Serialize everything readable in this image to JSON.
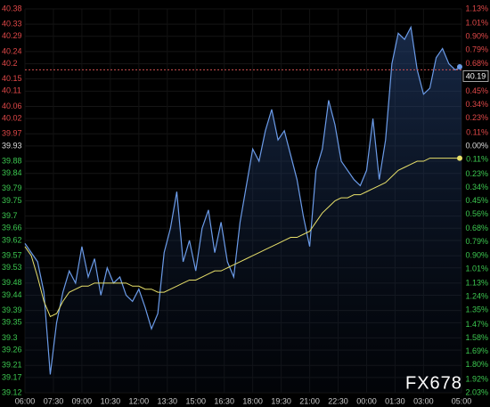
{
  "chart_data": {
    "type": "line",
    "watermark": "FX678",
    "last_price_label": "40.19",
    "reference_line": 40.18,
    "x": [
      "06:00",
      "06:20",
      "06:40",
      "07:00",
      "07:20",
      "07:40",
      "08:00",
      "08:20",
      "08:40",
      "09:00",
      "09:20",
      "09:40",
      "10:00",
      "10:20",
      "10:40",
      "11:00",
      "11:20",
      "11:40",
      "12:00",
      "12:20",
      "12:40",
      "13:00",
      "13:20",
      "13:40",
      "14:00",
      "14:20",
      "14:40",
      "15:00",
      "15:20",
      "15:40",
      "16:00",
      "16:20",
      "16:40",
      "17:00",
      "17:20",
      "17:40",
      "18:00",
      "18:20",
      "18:40",
      "19:00",
      "19:20",
      "19:40",
      "20:00",
      "20:20",
      "20:40",
      "21:00",
      "21:20",
      "21:40",
      "22:00",
      "22:20",
      "22:40",
      "23:00",
      "23:20",
      "23:40",
      "00:00",
      "00:20",
      "00:40",
      "01:00",
      "01:20",
      "01:40",
      "02:00",
      "02:20",
      "02:40",
      "03:00",
      "03:20",
      "03:40",
      "04:00",
      "04:20",
      "04:40",
      "05:00"
    ],
    "series": [
      {
        "color": "#6b9be8",
        "values": [
          39.61,
          39.58,
          39.55,
          39.45,
          39.18,
          39.35,
          39.45,
          39.52,
          39.48,
          39.6,
          39.5,
          39.56,
          39.44,
          39.53,
          39.48,
          39.5,
          39.44,
          39.42,
          39.46,
          39.4,
          39.33,
          39.38,
          39.58,
          39.66,
          39.78,
          39.55,
          39.62,
          39.52,
          39.66,
          39.72,
          39.58,
          39.68,
          39.55,
          39.5,
          39.68,
          39.8,
          39.92,
          39.88,
          39.98,
          40.05,
          39.95,
          39.98,
          39.9,
          39.82,
          39.7,
          39.6,
          39.85,
          39.92,
          40.08,
          40.0,
          39.88,
          39.85,
          39.82,
          39.8,
          39.85,
          40.02,
          39.82,
          39.95,
          40.2,
          40.3,
          40.28,
          40.32,
          40.18,
          40.1,
          40.12,
          40.22,
          40.25,
          40.2,
          40.18,
          40.19
        ]
      },
      {
        "color": "#e8e06a",
        "values": [
          39.6,
          39.57,
          39.5,
          39.42,
          39.37,
          39.38,
          39.42,
          39.45,
          39.46,
          39.47,
          39.47,
          39.48,
          39.48,
          39.48,
          39.48,
          39.48,
          39.48,
          39.47,
          39.47,
          39.46,
          39.46,
          39.45,
          39.45,
          39.46,
          39.47,
          39.48,
          39.49,
          39.49,
          39.5,
          39.51,
          39.52,
          39.52,
          39.53,
          39.54,
          39.55,
          39.56,
          39.57,
          39.58,
          39.59,
          39.6,
          39.61,
          39.62,
          39.63,
          39.63,
          39.64,
          39.65,
          39.68,
          39.71,
          39.73,
          39.75,
          39.76,
          39.76,
          39.77,
          39.77,
          39.78,
          39.79,
          39.8,
          39.81,
          39.83,
          39.85,
          39.86,
          39.87,
          39.88,
          39.88,
          39.89,
          39.89,
          39.89,
          39.89,
          39.89,
          39.89
        ]
      }
    ],
    "xlim": [
      "06:00",
      "05:00"
    ],
    "xticks": [
      "06:00",
      "07:30",
      "09:00",
      "10:30",
      "12:00",
      "13:30",
      "15:00",
      "16:30",
      "18:00",
      "19:30",
      "21:00",
      "22:30",
      "00:00",
      "01:30",
      "03:00",
      "05:00"
    ],
    "ylim": [
      39.12,
      40.38
    ],
    "yticks": [
      40.38,
      40.33,
      40.29,
      40.24,
      40.2,
      40.15,
      40.11,
      40.06,
      40.02,
      39.97,
      39.93,
      39.88,
      39.84,
      39.79,
      39.75,
      39.7,
      39.66,
      39.62,
      39.57,
      39.53,
      39.48,
      39.44,
      39.39,
      39.35,
      39.3,
      39.26,
      39.21,
      39.17,
      39.12
    ],
    "y2lim": [
      -2.03,
      1.13
    ],
    "y2ticks": [
      {
        "value": 1.13,
        "label": "1.13%"
      },
      {
        "value": 1.01,
        "label": "1.01%"
      },
      {
        "value": 0.9,
        "label": "0.90%"
      },
      {
        "value": 0.79,
        "label": "0.79%"
      },
      {
        "value": 0.68,
        "label": "0.68%"
      },
      {
        "value": 0.56,
        "label": "0.56%"
      },
      {
        "value": 0.45,
        "label": "0.45%"
      },
      {
        "value": 0.34,
        "label": "0.34%"
      },
      {
        "value": 0.23,
        "label": "0.23%"
      },
      {
        "value": 0.11,
        "label": "0.11%"
      },
      {
        "value": 0.0,
        "label": "0.00%"
      },
      {
        "value": -0.11,
        "label": "0.11%"
      },
      {
        "value": -0.23,
        "label": "0.23%"
      },
      {
        "value": -0.34,
        "label": "0.34%"
      },
      {
        "value": -0.45,
        "label": "0.45%"
      },
      {
        "value": -0.56,
        "label": "0.56%"
      },
      {
        "value": -0.68,
        "label": "0.68%"
      },
      {
        "value": -0.79,
        "label": "0.79%"
      },
      {
        "value": -0.9,
        "label": "0.90%"
      },
      {
        "value": -1.01,
        "label": "1.01%"
      },
      {
        "value": -1.13,
        "label": "1.13%"
      },
      {
        "value": -1.24,
        "label": "1.24%"
      },
      {
        "value": -1.35,
        "label": "1.35%"
      },
      {
        "value": -1.47,
        "label": "1.47%"
      },
      {
        "value": -1.58,
        "label": "1.58%"
      },
      {
        "value": -1.69,
        "label": "1.69%"
      },
      {
        "value": -1.8,
        "label": "1.80%"
      },
      {
        "value": -1.92,
        "label": "1.92%"
      },
      {
        "value": -2.03,
        "label": "2.03%"
      }
    ],
    "grid": true
  }
}
